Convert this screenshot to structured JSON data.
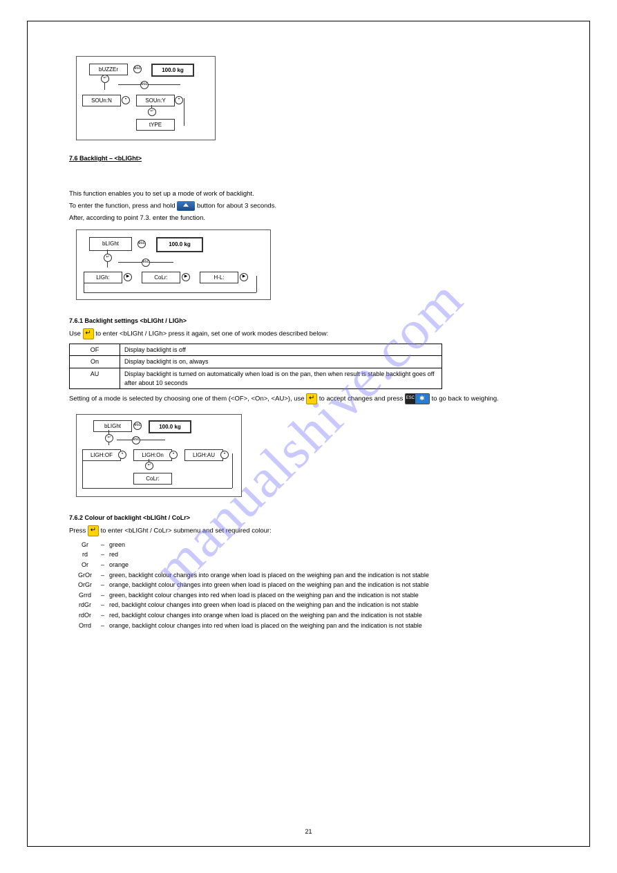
{
  "diagram_buzzer": {
    "type": "flowchart",
    "nodes": [
      {
        "id": "bUZZEr",
        "label": "bUZZEr"
      },
      {
        "id": "100kg",
        "label": "100.0 kg",
        "bold": true
      },
      {
        "id": "SOUnN",
        "label": "SOUn:N"
      },
      {
        "id": "SOUnY",
        "label": "SOUn:Y"
      },
      {
        "id": "tYPE",
        "label": "tYPE"
      }
    ]
  },
  "section_blight_heading": "7.6 Backlight – <bLIGht>",
  "para1": "This function enables you to set up a mode of work of backlight.",
  "para2a": "To enter the function, press and hold ",
  "para2b": " button for about 3 seconds.",
  "para3": "After, according to point 7.3. enter the function.",
  "diagram_blight_main": {
    "type": "flowchart",
    "nodes": [
      {
        "id": "bLIGht",
        "label": "bLIGht"
      },
      {
        "id": "100kg",
        "label": "100.0 kg",
        "bold": true
      },
      {
        "id": "LIGh",
        "label": "LIGh:"
      },
      {
        "id": "CoLr",
        "label": "CoLr:"
      },
      {
        "id": "HL",
        "label": "H-L:"
      }
    ]
  },
  "submenu1_heading": "7.6.1 Backlight settings <bLIGht / LIGh>",
  "submenu1_textA": "Use ",
  "submenu1_textB": " to enter <bLIGht / LIGh> press it again, set one of work modes described below:",
  "table": {
    "columns_widths": [
      "60px",
      "auto"
    ],
    "rows": [
      [
        "OF",
        "Display backlight is off"
      ],
      [
        "On",
        "Display backlight is on, always"
      ],
      [
        "AU",
        "Display backlight is turned on automatically when load is on the pan, then when result is stable backlight goes off after about 10 seconds"
      ]
    ]
  },
  "submenu1_textC": "Setting of a mode is selected by choosing one of them (<OF>, <On>, <AU>), use ",
  "submenu1_textD": " to accept changes and press ",
  "submenu1_textE": " to go back to weighing.",
  "diagram_blight_modes": {
    "type": "flowchart",
    "nodes": [
      {
        "id": "bLIGht",
        "label": "bLIGht"
      },
      {
        "id": "100kg",
        "label": "100.0 kg",
        "bold": true
      },
      {
        "id": "LIGHOF",
        "label": "LIGH:OF"
      },
      {
        "id": "LIGHOn",
        "label": "LIGH:On"
      },
      {
        "id": "LIGHAU",
        "label": "LIGH:AU"
      },
      {
        "id": "CoLr",
        "label": "CoLr:"
      }
    ]
  },
  "submenu2_heading": "7.6.2 Colour of backlight <bLIGht / CoLr>",
  "submenu2_textA": "Press ",
  "submenu2_textB": " to enter <bLIGht / CoLr> submenu and set required colour:",
  "colours_list": [
    {
      "code": "Gr",
      "desc": "green"
    },
    {
      "code": "rd",
      "desc": "red"
    },
    {
      "code": "Or",
      "desc": "orange"
    },
    {
      "code": "GrOr",
      "desc": "green, backlight colour changes into orange when load is placed on the weighing pan and the indication is not stable"
    },
    {
      "code": "OrGr",
      "desc": "orange, backlight colour changes into green when load is placed on the weighing pan and the indication is not stable"
    },
    {
      "code": "Grrd",
      "desc": "green, backlight colour changes into red when load is placed on the weighing pan and the indication is not stable"
    },
    {
      "code": "rdGr",
      "desc": "red, backlight colour changes into green when load is placed on the weighing pan and the indication is not stable"
    },
    {
      "code": "rdOr",
      "desc": "red, backlight colour changes into orange when load is placed on the weighing pan and the indication is not stable"
    },
    {
      "code": "Orrd",
      "desc": "orange, backlight colour changes into red when load is placed on the weighing pan and the indication is not stable"
    }
  ],
  "page_number": "21",
  "colors": {
    "border": "#000000",
    "text": "#000000",
    "watermark": "rgba(120,120,255,0.4)",
    "yellow_btn": "#ffd400",
    "blue_btn": "#2a7dd6"
  }
}
